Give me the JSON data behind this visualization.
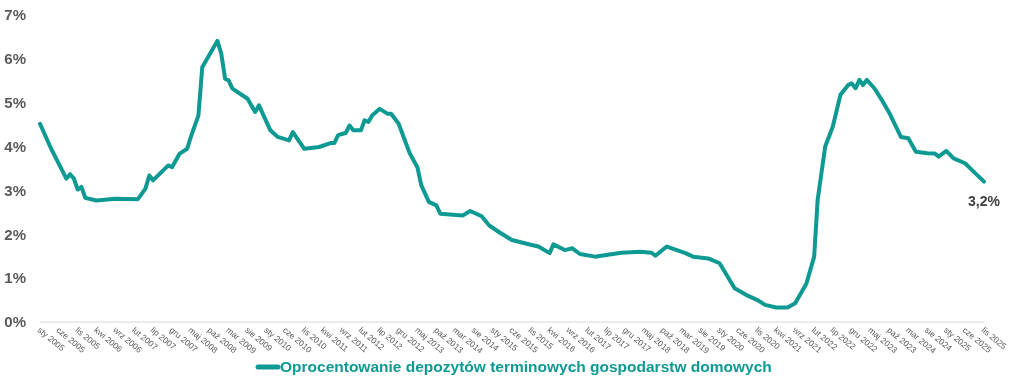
{
  "chart_data": {
    "type": "line",
    "legend": "bottom",
    "marker": "none",
    "line_style": "solid",
    "xlim": [
      "2005-01",
      "2025-11"
    ],
    "ylim": [
      0,
      7
    ],
    "yticks": [
      {
        "value": 0,
        "label": "0%"
      },
      {
        "value": 1,
        "label": "1%"
      },
      {
        "value": 2,
        "label": "2%"
      },
      {
        "value": 3,
        "label": "3%"
      },
      {
        "value": 4,
        "label": "4%"
      },
      {
        "value": 5,
        "label": "5%"
      },
      {
        "value": 6,
        "label": "6%"
      },
      {
        "value": 7,
        "label": "7%"
      }
    ],
    "xticks": [
      {
        "value": "2005-01",
        "label": "sty 2005"
      },
      {
        "value": "2005-06",
        "label": "cze 2005"
      },
      {
        "value": "2005-11",
        "label": "lis 2005"
      },
      {
        "value": "2006-04",
        "label": "kwi 2006"
      },
      {
        "value": "2006-09",
        "label": "wrz 2006"
      },
      {
        "value": "2007-02",
        "label": "lut 2007"
      },
      {
        "value": "2007-07",
        "label": "lip 2007"
      },
      {
        "value": "2007-12",
        "label": "gru 2007"
      },
      {
        "value": "2008-05",
        "label": "maj 2008"
      },
      {
        "value": "2008-10",
        "label": "paź 2008"
      },
      {
        "value": "2009-03",
        "label": "mar 2009"
      },
      {
        "value": "2009-08",
        "label": "sie 2009"
      },
      {
        "value": "2010-01",
        "label": "sty 2010"
      },
      {
        "value": "2010-06",
        "label": "cze 2010"
      },
      {
        "value": "2010-11",
        "label": "lis 2010"
      },
      {
        "value": "2011-04",
        "label": "kwi 2011"
      },
      {
        "value": "2011-09",
        "label": "wrz 2011"
      },
      {
        "value": "2012-02",
        "label": "lut 2012"
      },
      {
        "value": "2012-07",
        "label": "lip 2012"
      },
      {
        "value": "2012-12",
        "label": "gru 2012"
      },
      {
        "value": "2013-05",
        "label": "maj 2013"
      },
      {
        "value": "2013-10",
        "label": "paź 2013"
      },
      {
        "value": "2014-03",
        "label": "mar 2014"
      },
      {
        "value": "2014-08",
        "label": "sie 2014"
      },
      {
        "value": "2015-01",
        "label": "sty 2015"
      },
      {
        "value": "2015-06",
        "label": "cze 2015"
      },
      {
        "value": "2015-11",
        "label": "lis 2015"
      },
      {
        "value": "2016-04",
        "label": "kwi 2016"
      },
      {
        "value": "2016-09",
        "label": "wrz 2016"
      },
      {
        "value": "2017-02",
        "label": "lut 2017"
      },
      {
        "value": "2017-07",
        "label": "lip 2017"
      },
      {
        "value": "2017-12",
        "label": "gru 2017"
      },
      {
        "value": "2018-05",
        "label": "maj 2018"
      },
      {
        "value": "2018-10",
        "label": "paź 2018"
      },
      {
        "value": "2019-03",
        "label": "mar 2019"
      },
      {
        "value": "2019-08",
        "label": "sie 2019"
      },
      {
        "value": "2020-01",
        "label": "sty 2020"
      },
      {
        "value": "2020-06",
        "label": "cze 2020"
      },
      {
        "value": "2020-11",
        "label": "lis 2020"
      },
      {
        "value": "2021-04",
        "label": "kwi 2021"
      },
      {
        "value": "2021-09",
        "label": "wrz 2021"
      },
      {
        "value": "2022-02",
        "label": "lut 2022"
      },
      {
        "value": "2022-07",
        "label": "lip 2022"
      },
      {
        "value": "2022-12",
        "label": "gru 2022"
      },
      {
        "value": "2023-05",
        "label": "maj 2023"
      },
      {
        "value": "2023-10",
        "label": "paź 2023"
      },
      {
        "value": "2024-03",
        "label": "mar 2024"
      },
      {
        "value": "2024-08",
        "label": "sie 2024"
      },
      {
        "value": "2025-01",
        "label": "sty 2025"
      },
      {
        "value": "2025-06",
        "label": "cze 2025"
      },
      {
        "value": "2025-11",
        "label": "lis 2025"
      }
    ],
    "annotations": [
      {
        "text": "3,2%",
        "x": "2025-11",
        "y": 3.2
      }
    ],
    "series": [
      {
        "name": "Oprocentowanie depozytów terminowych gospodarstw domowych",
        "color": "#0e9a93",
        "x": [
          "2005-01",
          "2005-04",
          "2005-06",
          "2005-08",
          "2005-09",
          "2005-10",
          "2005-11",
          "2005-12",
          "2006-01",
          "2006-04",
          "2006-09",
          "2007-03",
          "2007-05",
          "2007-06",
          "2007-07",
          "2007-11",
          "2007-12",
          "2008-02",
          "2008-04",
          "2008-05",
          "2008-07",
          "2008-08",
          "2008-09",
          "2008-12",
          "2009-01",
          "2009-02",
          "2009-03",
          "2009-04",
          "2009-08",
          "2009-10",
          "2009-11",
          "2009-12",
          "2010-02",
          "2010-04",
          "2010-07",
          "2010-08",
          "2010-11",
          "2011-03",
          "2011-06",
          "2011-07",
          "2011-08",
          "2011-10",
          "2011-11",
          "2011-12",
          "2012-02",
          "2012-03",
          "2012-04",
          "2012-05",
          "2012-07",
          "2012-09",
          "2012-10",
          "2012-12",
          "2013-03",
          "2013-05",
          "2013-06",
          "2013-08",
          "2013-10",
          "2013-11",
          "2014-05",
          "2014-07",
          "2014-10",
          "2014-12",
          "2015-03",
          "2015-06",
          "2015-11",
          "2016-01",
          "2016-04",
          "2016-05",
          "2016-08",
          "2016-10",
          "2016-12",
          "2017-04",
          "2017-07",
          "2017-11",
          "2018-04",
          "2018-07",
          "2018-08",
          "2018-11",
          "2019-04",
          "2019-06",
          "2019-10",
          "2020-01",
          "2020-05",
          "2020-08",
          "2020-11",
          "2021-01",
          "2021-04",
          "2021-07",
          "2021-09",
          "2021-12",
          "2022-02",
          "2022-03",
          "2022-05",
          "2022-07",
          "2022-09",
          "2022-11",
          "2022-12",
          "2023-01",
          "2023-02",
          "2023-03",
          "2023-04",
          "2023-06",
          "2023-08",
          "2023-10",
          "2024-01",
          "2024-03",
          "2024-05",
          "2024-08",
          "2024-10",
          "2024-11",
          "2025-01",
          "2025-03",
          "2025-06",
          "2025-08",
          "2025-11"
        ],
        "values": [
          4.52,
          3.95,
          3.61,
          3.27,
          3.37,
          3.27,
          3.02,
          3.08,
          2.83,
          2.77,
          2.81,
          2.8,
          3.04,
          3.34,
          3.23,
          3.57,
          3.53,
          3.84,
          3.95,
          4.22,
          4.71,
          5.81,
          5.96,
          6.41,
          6.12,
          5.55,
          5.51,
          5.32,
          5.09,
          4.79,
          4.94,
          4.75,
          4.37,
          4.22,
          4.14,
          4.33,
          3.95,
          3.99,
          4.08,
          4.08,
          4.26,
          4.31,
          4.48,
          4.37,
          4.37,
          4.6,
          4.56,
          4.71,
          4.86,
          4.75,
          4.75,
          4.52,
          3.84,
          3.53,
          3.12,
          2.74,
          2.66,
          2.47,
          2.43,
          2.53,
          2.41,
          2.2,
          2.03,
          1.87,
          1.76,
          1.72,
          1.57,
          1.77,
          1.64,
          1.68,
          1.55,
          1.49,
          1.53,
          1.58,
          1.6,
          1.58,
          1.51,
          1.72,
          1.57,
          1.49,
          1.45,
          1.34,
          0.77,
          0.62,
          0.5,
          0.39,
          0.33,
          0.33,
          0.43,
          0.88,
          1.49,
          2.78,
          4.0,
          4.45,
          5.18,
          5.4,
          5.44,
          5.33,
          5.52,
          5.4,
          5.52,
          5.33,
          5.06,
          4.76,
          4.22,
          4.19,
          3.88,
          3.85,
          3.84,
          3.77,
          3.9,
          3.73,
          3.62,
          3.45,
          3.2
        ]
      }
    ]
  }
}
